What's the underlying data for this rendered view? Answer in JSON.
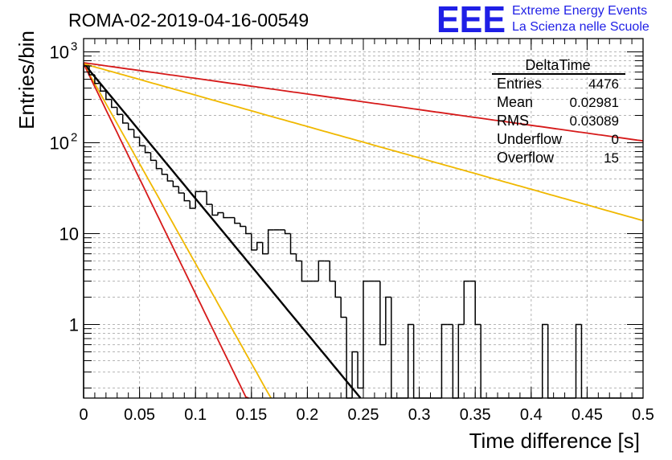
{
  "chart_data": {
    "type": "histogram",
    "title": "ROMA-02-2019-04-16-00549",
    "xlabel": "Time difference [s]",
    "ylabel": "Entries/bin",
    "xlim": [
      0,
      0.5
    ],
    "ylim": [
      0.155,
      1400
    ],
    "yscale": "log",
    "grid": true,
    "x_ticks": [
      "0",
      "0.05",
      "0.1",
      "0.15",
      "0.2",
      "0.25",
      "0.3",
      "0.35",
      "0.4",
      "0.45",
      "0.5"
    ],
    "y_ticks": [
      {
        "value": 1,
        "label": "1",
        "sup": ""
      },
      {
        "value": 10,
        "label": "10",
        "sup": ""
      },
      {
        "value": 100,
        "label": "10",
        "sup": "2"
      },
      {
        "value": 1000,
        "label": "10",
        "sup": "3"
      }
    ],
    "histogram": {
      "name": "DeltaTime",
      "bin_width": 0.005,
      "x_start": 0,
      "values": [
        700,
        560,
        450,
        370,
        300,
        245,
        205,
        165,
        140,
        115,
        93,
        78,
        64,
        52,
        45,
        38,
        33,
        28,
        23,
        19,
        29,
        29,
        21,
        16,
        17,
        15,
        15,
        13,
        12,
        10,
        6.6,
        8,
        6,
        11,
        11,
        11,
        10,
        6,
        5,
        3,
        3,
        3,
        5,
        5,
        3,
        2,
        1.2,
        0.1,
        0.5,
        0.2,
        3,
        3,
        3,
        0.6,
        2,
        0.1,
        0.1,
        0.1,
        1,
        0.1,
        0.1,
        0.1,
        0.1,
        0.1,
        1,
        1,
        0.1,
        1,
        3,
        3,
        1,
        0.1,
        0.1,
        0.1,
        0.1,
        0.1,
        0.1,
        0.1,
        0.1,
        0.1,
        0.1,
        0.1,
        1,
        0.1,
        0.1,
        0.1,
        0.1,
        0.1,
        1,
        0.1,
        0.1,
        0.1,
        0.1,
        0.1,
        0.1,
        0.1,
        0.1,
        0.1,
        0.1,
        0.1
      ]
    },
    "fits": [
      {
        "name": "fit",
        "color": "#000000",
        "amplitude": 750,
        "decay": 0.02917
      },
      {
        "name": "upper-long",
        "color": "#d61a1a",
        "amplitude": 760,
        "decay": 0.2523
      },
      {
        "name": "lower-long",
        "color": "#f0b800",
        "amplitude": 740,
        "decay": 0.1258
      },
      {
        "name": "lower-short",
        "color": "#f0b800",
        "amplitude": 740,
        "decay": 0.01976
      },
      {
        "name": "upper-short",
        "color": "#d61a1a",
        "amplitude": 740,
        "decay": 0.01717
      }
    ],
    "stats": {
      "title": "DeltaTime",
      "rows": [
        {
          "label": "Entries",
          "value": "4476"
        },
        {
          "label": "Mean",
          "value": "0.02981"
        },
        {
          "label": "RMS",
          "value": "0.03089"
        },
        {
          "label": "Underflow",
          "value": "0"
        },
        {
          "label": "Overflow",
          "value": "15"
        }
      ]
    }
  },
  "logo": {
    "mark": "EEE",
    "line1": "Extreme Energy Events",
    "line2": "La Scienza nelle Scuole",
    "color": "#1f1fe6"
  }
}
